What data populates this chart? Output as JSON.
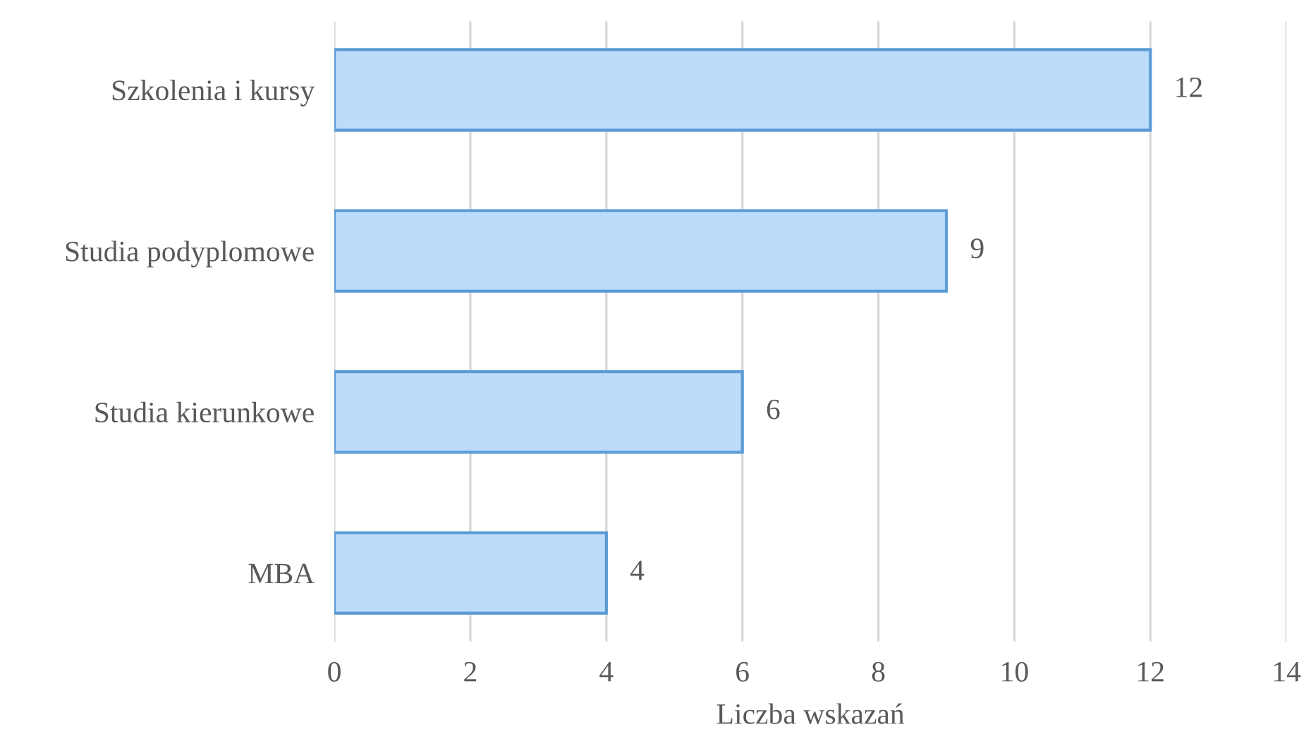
{
  "chart_data": {
    "type": "bar",
    "orientation": "horizontal",
    "xlabel": "Liczba wskazań",
    "categories": [
      "Szkolenia i kursy",
      "Studia podyplomowe",
      "Studia kierunkowe",
      "MBA"
    ],
    "values": [
      12,
      9,
      6,
      4
    ],
    "color": "#bcdcfa",
    "xlim": [
      0,
      14
    ],
    "xticks": [
      0,
      2,
      4,
      6,
      8,
      10,
      12,
      14
    ],
    "grid": "x",
    "data_labels": true
  }
}
